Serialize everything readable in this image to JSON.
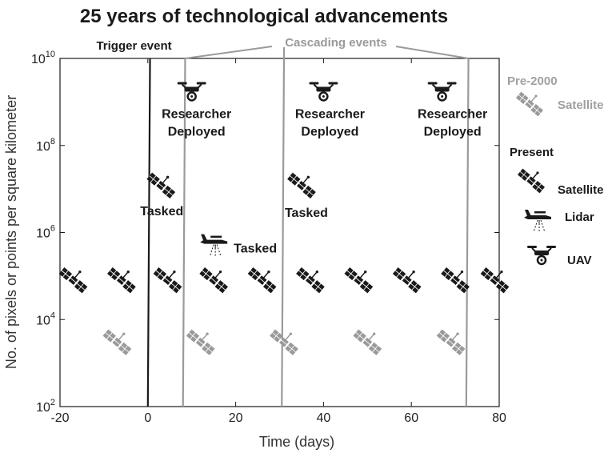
{
  "chart_data": {
    "type": "scatter",
    "title": "25 years of technological advancements",
    "xlabel": "Time (days)",
    "ylabel": "No. of pixels or points per square kilometer",
    "xlim": [
      -20,
      80
    ],
    "ylim": [
      100,
      10000000000
    ],
    "y_scale": "log",
    "x_ticks": [
      -20,
      0,
      20,
      40,
      60,
      80
    ],
    "y_ticks": [
      {
        "base": "10",
        "exp": "2",
        "value": 100
      },
      {
        "base": "10",
        "exp": "4",
        "value": 10000
      },
      {
        "base": "10",
        "exp": "6",
        "value": 1000000
      },
      {
        "base": "10",
        "exp": "8",
        "value": 100000000
      },
      {
        "base": "10",
        "exp": "10",
        "value": 10000000000
      }
    ],
    "grid": false,
    "legend_position": "right",
    "colors": {
      "present": "#1a1a1a",
      "pre2000": "#9a9a9a",
      "trigger_line": "#1a1a1a",
      "cascade_line": "#9a9a9a"
    },
    "event_lines": {
      "trigger": {
        "label": "Trigger event",
        "x_bottom": 0,
        "x_top": 0.5
      },
      "cascade_label": "Cascading events",
      "cascading": [
        {
          "x_bottom": 8,
          "x_top": 8.5
        },
        {
          "x_bottom": 30.5,
          "x_top": 31
        },
        {
          "x_bottom": 72.5,
          "x_top": 73
        }
      ]
    },
    "series": [
      {
        "name": "Satellite",
        "group": "Pre-2000",
        "icon": "satellite-icon",
        "points": [
          {
            "x": -7,
            "y": 3000
          },
          {
            "x": 12,
            "y": 3000
          },
          {
            "x": 31,
            "y": 3000
          },
          {
            "x": 50,
            "y": 3000
          },
          {
            "x": 69,
            "y": 3000
          }
        ]
      },
      {
        "name": "Satellite",
        "group": "Present",
        "icon": "satellite-icon",
        "points": [
          {
            "x": -17,
            "y": 80000
          },
          {
            "x": -6,
            "y": 80000
          },
          {
            "x": 4.5,
            "y": 80000
          },
          {
            "x": 15,
            "y": 80000
          },
          {
            "x": 26,
            "y": 80000
          },
          {
            "x": 37,
            "y": 80000
          },
          {
            "x": 48,
            "y": 80000
          },
          {
            "x": 59,
            "y": 80000
          },
          {
            "x": 70,
            "y": 80000
          },
          {
            "x": 79,
            "y": 80000
          }
        ]
      },
      {
        "name": "Satellite (tasked)",
        "group": "Present",
        "icon": "satellite-icon",
        "points": [
          {
            "x": 3,
            "y": 12000000,
            "label": "Tasked"
          },
          {
            "x": 35,
            "y": 12000000,
            "label": "Tasked"
          }
        ]
      },
      {
        "name": "Lidar",
        "group": "Present",
        "icon": "lidar-plane-icon",
        "points": [
          {
            "x": 15,
            "y": 600000,
            "label": "Tasked"
          }
        ]
      },
      {
        "name": "UAV",
        "group": "Present",
        "icon": "uav-drone-icon",
        "points": [
          {
            "x": 10,
            "y": 1800000000,
            "label": "Researcher Deployed"
          },
          {
            "x": 40,
            "y": 1800000000,
            "label": "Researcher Deployed"
          },
          {
            "x": 67,
            "y": 1800000000,
            "label": "Researcher Deployed"
          }
        ]
      }
    ]
  },
  "legend": {
    "pre2000_title": "Pre-2000",
    "pre2000_satellite": "Satellite",
    "present_title": "Present",
    "present_satellite": "Satellite",
    "present_lidar": "Lidar",
    "present_uav": "UAV"
  },
  "annotations": {
    "tasked_1": "Tasked",
    "tasked_2": "Tasked",
    "tasked_lidar": "Tasked",
    "researcher_1a": "Researcher",
    "researcher_1b": "Deployed",
    "researcher_2a": "Researcher",
    "researcher_2b": "Deployed",
    "researcher_3a": "Researcher",
    "researcher_3b": "Deployed"
  }
}
